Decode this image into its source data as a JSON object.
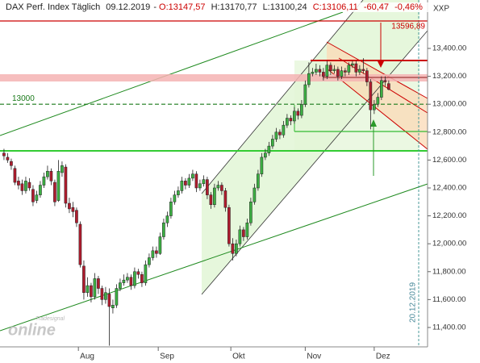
{
  "chart_data": {
    "type": "candlestick",
    "title": "DAX Perf. Index Täglich",
    "date": "09.12.2019",
    "ohlc_labels": [
      "O:13147,57",
      "H:13170,77",
      "L:13100,24",
      "C:13106,11"
    ],
    "change": "-60,47",
    "change_pct": "-0,46%",
    "symbol_label": "XXP",
    "date_marker": "20.12.2019",
    "watermark_small": "Tradesignal",
    "watermark": "online",
    "up_color": "#3cb043",
    "down_color": "#b01c2e",
    "xlim": [
      -1.1,
      116.7
    ],
    "xticks": [
      {
        "value": 20.5,
        "label": "Aug"
      },
      {
        "value": 42.5,
        "label": "Sep"
      },
      {
        "value": 62.5,
        "label": "Okt"
      },
      {
        "value": 83,
        "label": "Nov"
      },
      {
        "value": 102,
        "label": "Dez"
      }
    ],
    "ylim": [
      11261,
      13747
    ],
    "yticks": [
      {
        "value": 11400,
        "label": "11,400.00"
      },
      {
        "value": 11600,
        "label": "11,600.00"
      },
      {
        "value": 11800,
        "label": "11,800.00"
      },
      {
        "value": 12000,
        "label": "12,000.00"
      },
      {
        "value": 12200,
        "label": "12,200.00"
      },
      {
        "value": 12400,
        "label": "12,400.00"
      },
      {
        "value": 12600,
        "label": "12,600.00"
      },
      {
        "value": 12800,
        "label": "12,800.00"
      },
      {
        "value": 13000,
        "label": "13,000.00"
      },
      {
        "value": 13200,
        "label": "13,200.00"
      },
      {
        "value": 13400,
        "label": "13,400.00"
      }
    ],
    "annotations": [
      {
        "value": 13596.89,
        "label": "13596,89",
        "color": "#cc0000"
      },
      {
        "value": 13000,
        "label": "13000",
        "color": "#1a7a1a"
      }
    ],
    "open": [
      12650,
      12620,
      12590,
      12540,
      12450,
      12430,
      12380,
      12440,
      12390,
      12310,
      12350,
      12420,
      12480,
      12520,
      12440,
      12310,
      12510,
      12550,
      12290,
      12260,
      12240,
      12140,
      11840,
      11650,
      11700,
      11620,
      11750,
      11680,
      11600,
      11640,
      11540,
      11560,
      11680,
      11720,
      11740,
      11760,
      11700,
      11800,
      11780,
      11720,
      11850,
      11900,
      11950,
      11930,
      12050,
      12150,
      12200,
      12300,
      12350,
      12380,
      12450,
      12420,
      12470,
      12500,
      12400,
      12430,
      12460,
      12350,
      12280,
      12400,
      12420,
      12380,
      12260,
      12000,
      11930,
      12000,
      12100,
      12050,
      12150,
      12300,
      12400,
      12500,
      12620,
      12650,
      12700,
      12750,
      12800,
      12780,
      12850,
      12900,
      12880,
      12950,
      12920,
      13000,
      13140,
      13220,
      13230,
      13250,
      13230,
      13200,
      13280,
      13240,
      13250,
      13200,
      13240,
      13230,
      13280,
      13290,
      13230,
      13250,
      13240,
      13160,
      12960,
      13000,
      13050,
      13170,
      13147.57
    ],
    "high": [
      12680,
      12650,
      12610,
      12560,
      12480,
      12460,
      12480,
      12470,
      12420,
      12380,
      12450,
      12510,
      12560,
      12540,
      12460,
      12600,
      12590,
      12570,
      12330,
      12300,
      12260,
      12160,
      11880,
      11760,
      11720,
      11790,
      11770,
      11700,
      11690,
      11680,
      11600,
      11710,
      11750,
      11780,
      11790,
      11780,
      11830,
      11820,
      11800,
      11880,
      11930,
      11980,
      11980,
      12080,
      12180,
      12230,
      12330,
      12380,
      12410,
      12480,
      12470,
      12500,
      12530,
      12520,
      12460,
      12490,
      12480,
      12370,
      12430,
      12450,
      12440,
      12400,
      12280,
      12040,
      12030,
      12130,
      12120,
      12180,
      12330,
      12430,
      12530,
      12650,
      12680,
      12730,
      12780,
      12830,
      12820,
      12880,
      12930,
      12920,
      12980,
      12970,
      13030,
      13170,
      13300,
      13260,
      13290,
      13280,
      13260,
      13310,
      13300,
      13280,
      13270,
      13270,
      13260,
      13300,
      13310,
      13310,
      13280,
      13330,
      13260,
      13180,
      13030,
      13080,
      13200,
      13200,
      13170.77
    ],
    "low": [
      12600,
      12580,
      12530,
      12420,
      12390,
      12350,
      12360,
      12380,
      12270,
      12290,
      12330,
      12400,
      12460,
      12420,
      12270,
      12300,
      12480,
      12260,
      12220,
      12190,
      12120,
      11830,
      11600,
      11620,
      11580,
      11600,
      11640,
      11560,
      11570,
      11270,
      11500,
      11540,
      11660,
      11700,
      11720,
      11670,
      11680,
      11750,
      11690,
      11700,
      11830,
      11880,
      11900,
      11920,
      12030,
      12120,
      12180,
      12280,
      12330,
      12360,
      12390,
      12400,
      12450,
      12370,
      12380,
      12410,
      12320,
      12250,
      12260,
      12380,
      12350,
      12230,
      11980,
      11880,
      11910,
      11980,
      12020,
      12030,
      12130,
      12280,
      12380,
      12480,
      12600,
      12630,
      12680,
      12730,
      12750,
      12760,
      12830,
      12850,
      12860,
      12890,
      12900,
      12980,
      13120,
      13200,
      13210,
      13200,
      13170,
      13180,
      13210,
      13220,
      13170,
      13180,
      13200,
      13210,
      13260,
      13200,
      13210,
      13220,
      13130,
      12820,
      12930,
      12980,
      13030,
      13130,
      13100.24
    ],
    "close": [
      12630,
      12600,
      12560,
      12440,
      12420,
      12380,
      12450,
      12400,
      12300,
      12350,
      12420,
      12480,
      12520,
      12450,
      12300,
      12520,
      12560,
      12290,
      12250,
      12230,
      12150,
      11850,
      11650,
      11700,
      11620,
      11750,
      11680,
      11600,
      11650,
      11550,
      11560,
      11680,
      11720,
      11740,
      11760,
      11700,
      11800,
      11780,
      11720,
      11850,
      11900,
      11950,
      11930,
      12050,
      12150,
      12200,
      12300,
      12350,
      12380,
      12450,
      12420,
      12470,
      12500,
      12400,
      12430,
      12460,
      12350,
      12280,
      12400,
      12420,
      12380,
      12260,
      12000,
      11930,
      12000,
      12100,
      12050,
      12150,
      12300,
      12400,
      12500,
      12620,
      12650,
      12700,
      12750,
      12800,
      12780,
      12850,
      12900,
      12880,
      12950,
      12920,
      13000,
      13140,
      13220,
      13230,
      13250,
      13230,
      13200,
      13280,
      13240,
      13250,
      13200,
      13240,
      13230,
      13280,
      13290,
      13230,
      13250,
      13240,
      13160,
      12960,
      13000,
      13050,
      13170,
      13160,
      13106.11
    ]
  }
}
